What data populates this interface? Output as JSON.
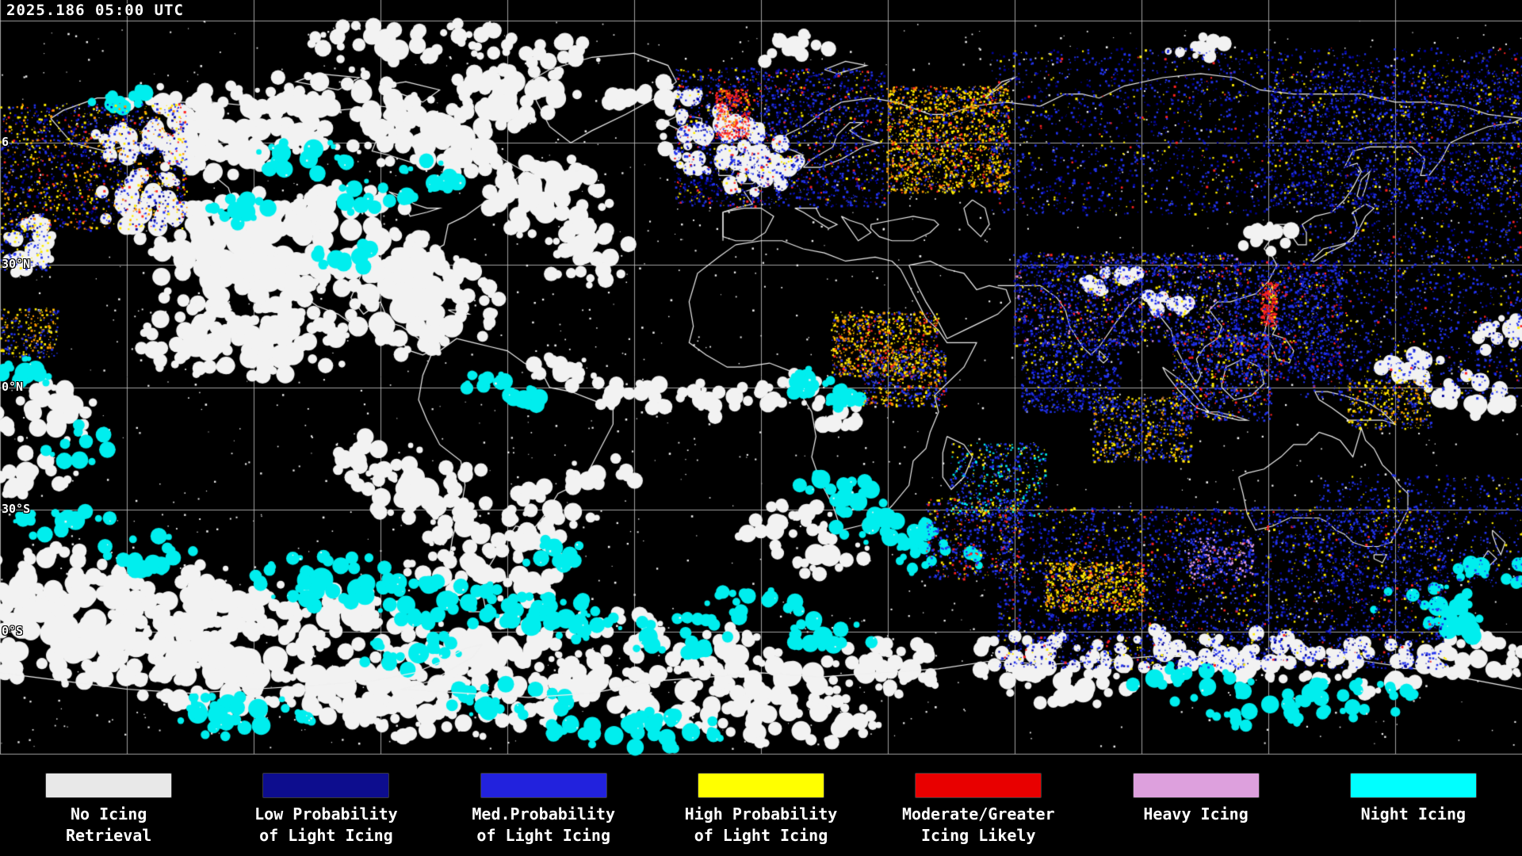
{
  "header": {
    "timestamp": "2025.186 05:00 UTC"
  },
  "map": {
    "latitude_labels": [
      "6",
      "30°N",
      "0°N",
      "30°S",
      "0°S"
    ]
  },
  "colors": {
    "map_background": "#000000",
    "coastline": "#f0f0f0",
    "graticule": "#c8c8c8",
    "cloud_white": "#f2f2f2",
    "icing_navy": "#000099",
    "icing_blue": "#2233ee",
    "icing_yellow": "#ffee00",
    "icing_orange": "#ff9900",
    "icing_red": "#ff2222",
    "icing_plum": "#e09ae0",
    "icing_cyan": "#00eeee"
  },
  "legend": {
    "items": [
      {
        "id": "no-icing",
        "color": "#e8e8e8",
        "line1": "No Icing",
        "line2": "Retrieval"
      },
      {
        "id": "low-prob",
        "color": "#0d0d8e",
        "line1": "Low Probability",
        "line2": "of Light Icing"
      },
      {
        "id": "med-prob",
        "color": "#2222dd",
        "line1": "Med.Probability",
        "line2": "of Light Icing"
      },
      {
        "id": "high-prob",
        "color": "#ffff00",
        "line1": "High Probability",
        "line2": "of Light Icing"
      },
      {
        "id": "moderate-greater",
        "color": "#e80000",
        "line1": "Moderate/Greater",
        "line2": "Icing Likely"
      },
      {
        "id": "heavy-icing",
        "color": "#dda0dd",
        "line1": "Heavy Icing",
        "line2": ""
      },
      {
        "id": "night-icing",
        "color": "#00ffff",
        "line1": "Night Icing",
        "line2": ""
      }
    ]
  }
}
